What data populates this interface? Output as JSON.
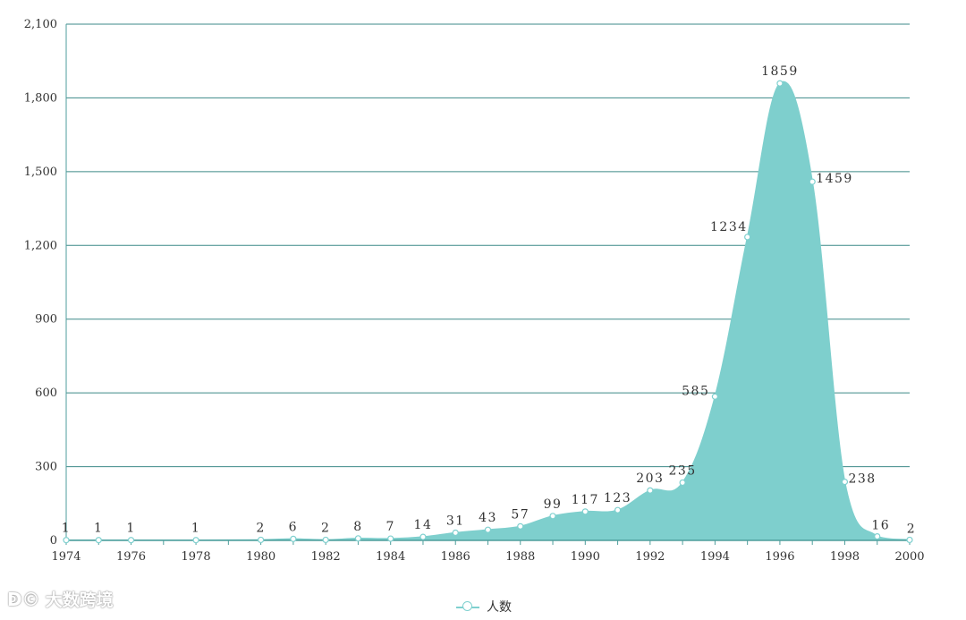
{
  "chart_data": {
    "type": "area",
    "title": "",
    "xlabel": "",
    "ylabel": "",
    "x": [
      1974,
      1975,
      1976,
      1977,
      1978,
      1979,
      1980,
      1981,
      1982,
      1983,
      1984,
      1985,
      1986,
      1987,
      1988,
      1989,
      1990,
      1991,
      1992,
      1993,
      1994,
      1995,
      1996,
      1997,
      1998,
      1999,
      2000
    ],
    "x_tick_labels": [
      "1974",
      "1976",
      "1978",
      "1980",
      "1982",
      "1984",
      "1986",
      "1988",
      "1990",
      "1992",
      "1994",
      "1996",
      "1998",
      "2000"
    ],
    "ylim": [
      0,
      2100
    ],
    "y_tick_labels": [
      "0",
      "300",
      "600",
      "900",
      "1,200",
      "1,500",
      "1,800",
      "2,100"
    ],
    "series": [
      {
        "name": "人数",
        "values": [
          1,
          1,
          1,
          null,
          1,
          null,
          2,
          6,
          2,
          8,
          7,
          14,
          31,
          43,
          57,
          99,
          117,
          123,
          203,
          235,
          585,
          1234,
          1859,
          1459,
          238,
          16,
          2
        ],
        "data_labels": [
          "1",
          "1",
          "1",
          "",
          "1",
          "",
          "2",
          "6",
          "2",
          "8",
          "7",
          "14",
          "31",
          "43",
          "57",
          "99",
          "117",
          "123",
          "203",
          "235",
          "585",
          "1234",
          "1859",
          "1459",
          "238",
          "16",
          "2"
        ]
      }
    ],
    "grid": true,
    "legend": "bottom-center",
    "colors": {
      "fill": "#7ecfcd",
      "grid": "#3d8a88",
      "axis": "#4f9e9c",
      "marker": "#7fd0cf"
    }
  },
  "watermark": {
    "logo": "ↁ©",
    "text": "大数跨境"
  }
}
